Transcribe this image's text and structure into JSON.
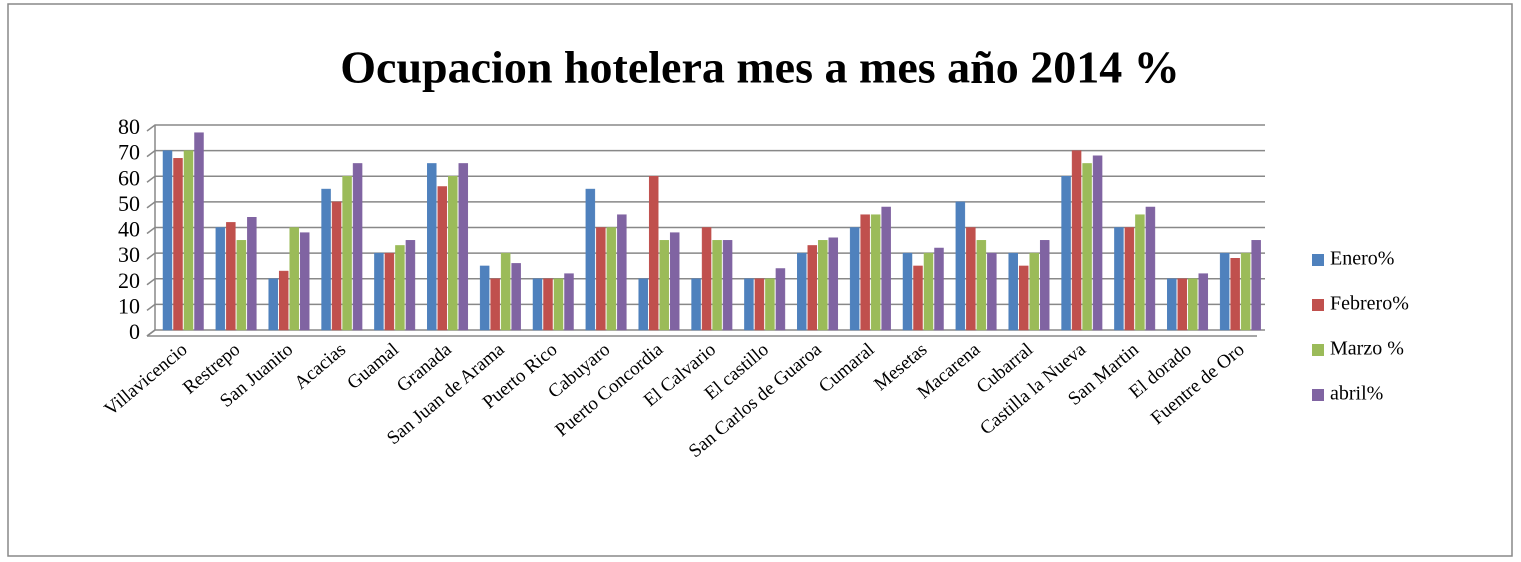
{
  "chart_data": {
    "type": "bar",
    "title": "Ocupacion hotelera mes a mes año 2014 %",
    "categories": [
      "Villavicencio",
      "Restrepo",
      "San Juanito",
      "Acacias",
      "Guamal",
      "Granada",
      "San Juan de Arama",
      "Puerto Rico",
      "Cabuyaro",
      "Puerto Concordia",
      "El Calvario",
      "El castillo",
      "San Carlos de Guaroa",
      "Cumaral",
      "Mesetas",
      "Macarena",
      "Cubarral",
      "Castilla la Nueva",
      "San Martin",
      "El dorado",
      "Fuentre de Oro"
    ],
    "series": [
      {
        "name": "Enero%",
        "color": "#4f81bd",
        "values": [
          70,
          40,
          20,
          55,
          30,
          65,
          25,
          20,
          55,
          20,
          20,
          20,
          30,
          40,
          30,
          50,
          30,
          60,
          40,
          20,
          30
        ]
      },
      {
        "name": "Febrero%",
        "color": "#c0504d",
        "values": [
          67,
          42,
          23,
          50,
          30,
          56,
          20,
          20,
          40,
          60,
          40,
          20,
          33,
          45,
          25,
          40,
          25,
          70,
          40,
          20,
          28
        ]
      },
      {
        "name": "Marzo %",
        "color": "#9bbb59",
        "values": [
          70,
          35,
          40,
          60,
          33,
          60,
          30,
          20,
          40,
          35,
          35,
          20,
          35,
          45,
          30,
          35,
          30,
          65,
          45,
          20,
          30
        ]
      },
      {
        "name": "abril%",
        "color": "#8064a2",
        "values": [
          77,
          44,
          38,
          65,
          35,
          65,
          26,
          22,
          45,
          38,
          35,
          24,
          36,
          48,
          32,
          30,
          35,
          68,
          48,
          22,
          35
        ]
      }
    ],
    "ylim": [
      0,
      80
    ],
    "yticks": [
      0,
      10,
      20,
      30,
      40,
      50,
      60,
      70,
      80
    ],
    "grid": true,
    "legend": "right"
  }
}
